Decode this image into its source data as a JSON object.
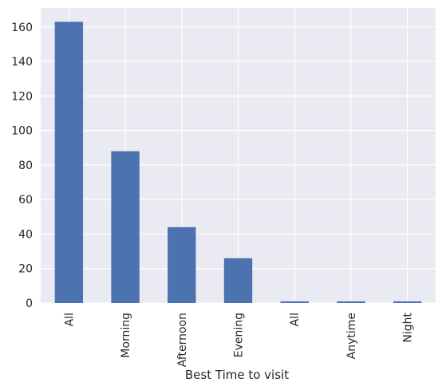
{
  "chart_data": {
    "type": "bar",
    "categories": [
      "All",
      "Morning",
      "Afternoon",
      "Evening",
      "All",
      "Anytime",
      "Night"
    ],
    "values": [
      163,
      88,
      44,
      26,
      1,
      1,
      1
    ],
    "title": "",
    "xlabel": "Best Time to visit",
    "ylabel": "",
    "ylim": [
      0,
      171
    ],
    "yticks": [
      0,
      20,
      40,
      60,
      80,
      100,
      120,
      140,
      160
    ],
    "grid": true,
    "legend": "none",
    "colors": {
      "bar": "#4c72b0",
      "plot_background": "#eaeaf2",
      "grid": "#ffffff",
      "text": "#262626"
    }
  }
}
